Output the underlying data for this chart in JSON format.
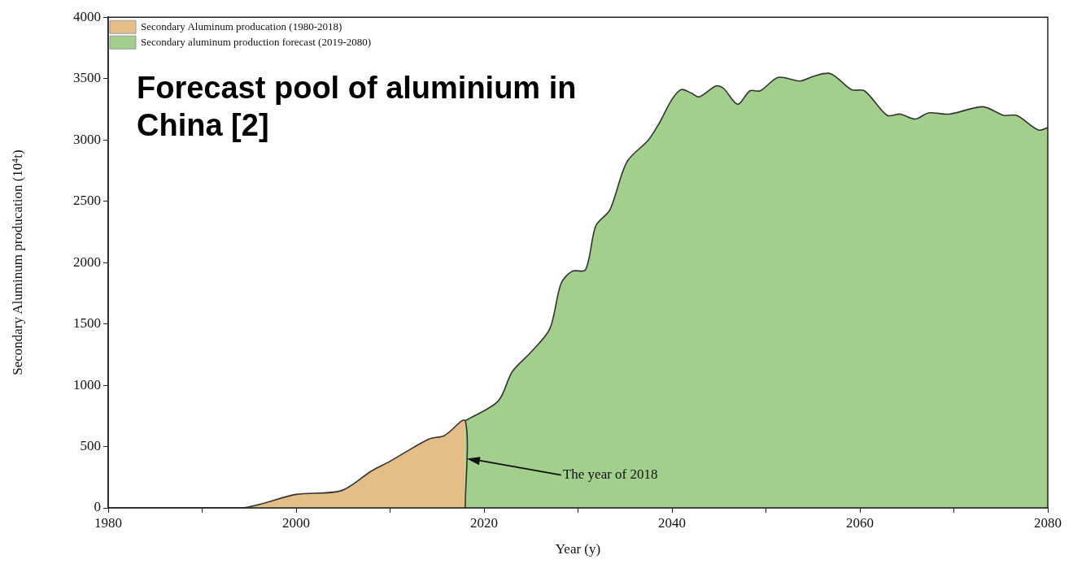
{
  "chart_data": {
    "type": "area",
    "title": "Forecast pool of aluminium in China [2]",
    "xlabel": "Year (y)",
    "ylabel": "Secondary Aluminum producation (10⁴t)",
    "xlim": [
      1980,
      2080
    ],
    "xticks": [
      1980,
      {
        "value": 1990,
        "label": null
      },
      2000,
      {
        "value": 2010,
        "label": null
      },
      2020,
      {
        "value": 2030,
        "label": null
      },
      2040,
      {
        "value": 2050,
        "label": null
      },
      2060,
      {
        "value": 2070,
        "label": null
      },
      2080
    ],
    "ylim": [
      0,
      4000
    ],
    "yticks": [
      0,
      500,
      1000,
      1500,
      2000,
      2500,
      3000,
      3500,
      4000
    ],
    "grid": false,
    "legend": "top left",
    "series": [
      {
        "name": "Secondary Aluminum producation (1980-2018)",
        "color": "#e5bd87",
        "x": [
          1980,
          1994.2,
          2000,
          2004.8,
          2008,
          2010,
          2014.1,
          2015.8,
          2018,
          2018
        ],
        "values": [
          0,
          0,
          110,
          140,
          300,
          380,
          560,
          590,
          710,
          0
        ]
      },
      {
        "name": "Secondary aluminum production forecast (2019-2080)",
        "color": "#a2cf8c",
        "x": [
          2018,
          2021.5,
          2023,
          2025,
          2027,
          2028.2,
          2029.4,
          2030.8,
          2031.9,
          2033.4,
          2035.2,
          2037.5,
          2038.6,
          2040,
          2041,
          2042.1,
          2042.9,
          2044.7,
          2045.5,
          2047,
          2048.3,
          2049.4,
          2051.3,
          2053.6,
          2055.1,
          2056.9,
          2059.1,
          2060.5,
          2062.9,
          2064.3,
          2065.9,
          2067.3,
          2069.5,
          2073.1,
          2075.3,
          2076.7,
          2079,
          2080
        ],
        "values": [
          710,
          870,
          1110,
          1270,
          1460,
          1830,
          1930,
          1940,
          2300,
          2430,
          2820,
          3000,
          3130,
          3330,
          3410,
          3380,
          3350,
          3440,
          3420,
          3290,
          3400,
          3400,
          3510,
          3480,
          3520,
          3540,
          3410,
          3400,
          3200,
          3210,
          3170,
          3220,
          3210,
          3270,
          3200,
          3200,
          3080,
          3100
        ]
      }
    ],
    "annotations": [
      {
        "text": "The year of 2018",
        "x": 2018,
        "y": 400
      }
    ]
  }
}
